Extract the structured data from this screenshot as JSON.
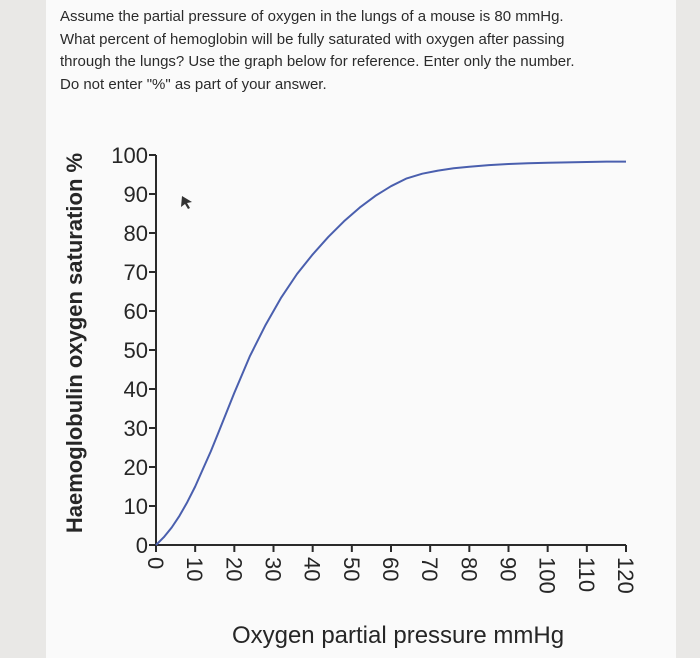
{
  "question": {
    "text": "Assume the partial pressure of oxygen in the lungs of a mouse is 80 mmHg.\nWhat percent of hemoglobin will be fully saturated with oxygen after passing\nthrough the lungs? Use the graph below for reference. Enter only the number.\nDo not enter \"%\" as part of your answer."
  },
  "chart_data": {
    "type": "line",
    "title": "",
    "xlabel": "Oxygen partial pressure mmHg",
    "ylabel": "Haemoglobulin oxygen saturation %",
    "xlim": [
      0,
      120
    ],
    "ylim": [
      0,
      100
    ],
    "x_ticks": [
      0,
      10,
      20,
      30,
      40,
      50,
      60,
      70,
      80,
      90,
      100,
      110,
      120
    ],
    "y_ticks": [
      0,
      10,
      20,
      30,
      40,
      50,
      60,
      70,
      80,
      90,
      100
    ],
    "grid": false,
    "line_color": "#4a5fae",
    "series": [
      {
        "x": [
          0,
          2,
          4,
          6,
          8,
          10,
          12,
          14,
          16,
          18,
          20,
          24,
          28,
          32,
          36,
          40,
          44,
          48,
          52,
          56,
          60,
          64,
          68,
          72,
          76,
          80,
          85,
          90,
          95,
          100,
          105,
          110,
          115,
          120
        ],
        "values": [
          0,
          2,
          4.5,
          7.5,
          11,
          15,
          19.5,
          24,
          29,
          34,
          39,
          48.5,
          56.5,
          63.5,
          69.5,
          74.5,
          79,
          83,
          86.5,
          89.5,
          92,
          94,
          95.2,
          96,
          96.6,
          97,
          97.4,
          97.7,
          97.9,
          98,
          98.1,
          98.2,
          98.3,
          98.3
        ]
      }
    ]
  }
}
